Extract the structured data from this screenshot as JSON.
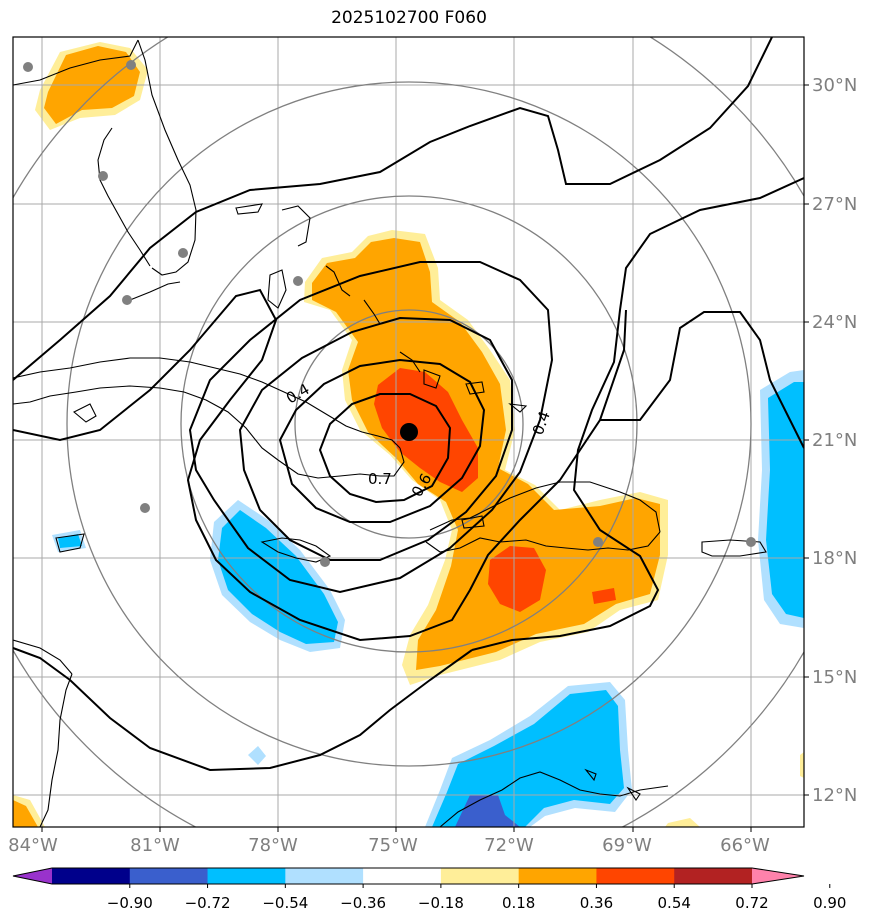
{
  "title": "2025102700 F060",
  "map": {
    "lon_labels": [
      "84°W",
      "81°W",
      "78°W",
      "75°W",
      "72°W",
      "69°W",
      "66°W"
    ],
    "lat_labels": [
      "30°N",
      "27°N",
      "24°N",
      "21°N",
      "18°N",
      "15°N",
      "12°N"
    ],
    "contour_labels": [
      "0.4",
      "0.7",
      "0.4",
      "0.6"
    ],
    "storm_center": {
      "lon": -74.9,
      "lat": 21.2
    },
    "grid": true,
    "range_rings": true
  },
  "colorbar": {
    "ticks": [
      "−0.90",
      "−0.72",
      "−0.54",
      "−0.36",
      "−0.18",
      "0.18",
      "0.36",
      "0.54",
      "0.72",
      "0.90"
    ],
    "colors": [
      "#9932cc",
      "#00008b",
      "#3a5fcd",
      "#00bfff",
      "#b0e0ff",
      "#ffffff",
      "#ffee99",
      "#ffa500",
      "#ff4500",
      "#b22222",
      "#ff82ab"
    ]
  },
  "colors": {
    "grid": "#a9a9a9",
    "ring": "#808080",
    "label": "#7f7f7f",
    "orange": "#ffa500",
    "red": "#ff4500",
    "light_yellow": "#ffee99",
    "deep_sky": "#00bfff",
    "light_blue": "#b0e0ff",
    "royal_blue": "#3a5fcd"
  }
}
